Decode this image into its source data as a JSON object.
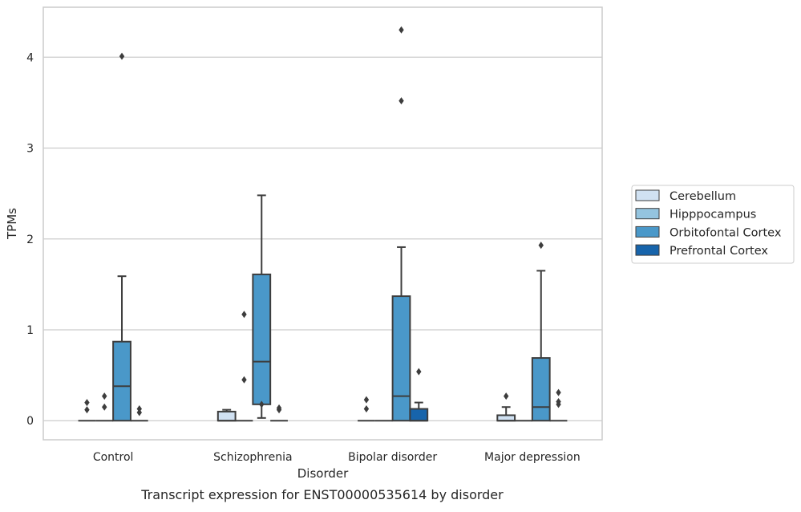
{
  "chart_data": {
    "type": "box",
    "title": "",
    "caption": "Transcript expression for ENST00000535614 by disorder",
    "xlabel": "Disorder",
    "ylabel": "TPMs",
    "ylim": [
      -0.21,
      4.55
    ],
    "yticks": [
      "0",
      "1",
      "2",
      "3",
      "4"
    ],
    "grid": "horizontal",
    "legend_position": "right",
    "categories": [
      "Control",
      "Schizophrenia",
      "Bipolar disorder",
      "Major depression"
    ],
    "series": [
      {
        "name": "Cerebellum",
        "color": "#d0e1f2",
        "boxes": [
          {
            "min": 0,
            "q1": 0,
            "median": 0,
            "q3": 0,
            "max": 0,
            "outliers": [
              0.12,
              0.2
            ]
          },
          {
            "min": 0,
            "q1": 0,
            "median": 0,
            "q3": 0.1,
            "max": 0.12,
            "outliers": []
          },
          {
            "min": 0,
            "q1": 0,
            "median": 0,
            "q3": 0,
            "max": 0,
            "outliers": [
              0.13,
              0.23
            ]
          },
          {
            "min": 0,
            "q1": 0,
            "median": 0,
            "q3": 0.06,
            "max": 0.15,
            "outliers": [
              0.27
            ]
          }
        ]
      },
      {
        "name": "Hipppocampus",
        "color": "#94c4df",
        "boxes": [
          {
            "min": 0,
            "q1": 0,
            "median": 0,
            "q3": 0,
            "max": 0,
            "outliers": [
              0.15,
              0.27
            ]
          },
          {
            "min": 0,
            "q1": 0,
            "median": 0,
            "q3": 0,
            "max": 0,
            "outliers": [
              0.45,
              1.17
            ]
          },
          {
            "min": 0,
            "q1": 0,
            "median": 0,
            "q3": 0,
            "max": 0,
            "outliers": []
          },
          {
            "min": 0,
            "q1": 0,
            "median": 0,
            "q3": 0,
            "max": 0,
            "outliers": []
          }
        ]
      },
      {
        "name": "Orbitofontal Cortex",
        "color": "#4a98c9",
        "boxes": [
          {
            "min": 0,
            "q1": 0,
            "median": 0.38,
            "q3": 0.87,
            "max": 1.59,
            "outliers": [
              4.01
            ]
          },
          {
            "min": 0.03,
            "q1": 0.18,
            "median": 0.65,
            "q3": 1.61,
            "max": 2.48,
            "outliers": [
              0.18
            ]
          },
          {
            "min": 0,
            "q1": 0,
            "median": 0.27,
            "q3": 1.37,
            "max": 1.91,
            "outliers": [
              3.52,
              4.3
            ]
          },
          {
            "min": 0,
            "q1": 0,
            "median": 0.15,
            "q3": 0.69,
            "max": 1.65,
            "outliers": [
              1.93
            ]
          }
        ]
      },
      {
        "name": "Prefrontal Cortex",
        "color": "#1764ab",
        "boxes": [
          {
            "min": 0,
            "q1": 0,
            "median": 0,
            "q3": 0,
            "max": 0,
            "outliers": [
              0.09,
              0.13
            ]
          },
          {
            "min": 0,
            "q1": 0,
            "median": 0,
            "q3": 0,
            "max": 0,
            "outliers": [
              0.12,
              0.14
            ]
          },
          {
            "min": 0,
            "q1": 0,
            "median": 0,
            "q3": 0.13,
            "max": 0.2,
            "outliers": [
              0.54
            ]
          },
          {
            "min": 0,
            "q1": 0,
            "median": 0,
            "q3": 0,
            "max": 0,
            "outliers": [
              0.18,
              0.21,
              0.31
            ]
          }
        ]
      }
    ]
  }
}
